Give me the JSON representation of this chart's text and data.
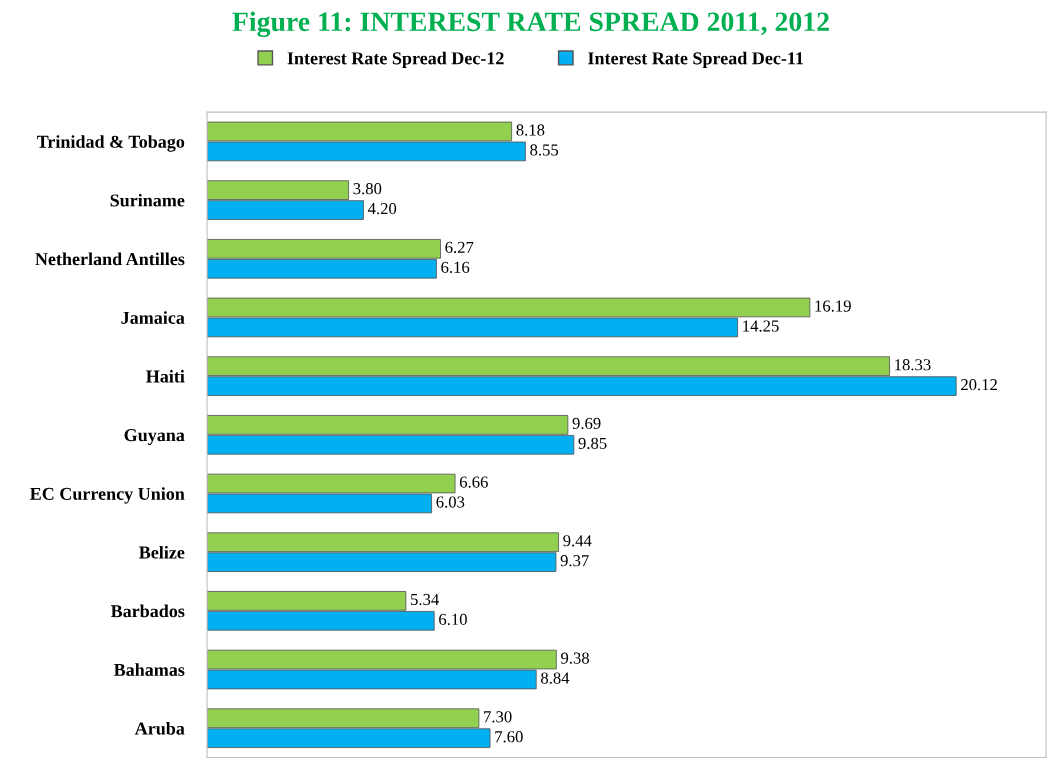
{
  "chart_data": {
    "type": "bar",
    "orientation": "horizontal",
    "title": "Figure 11: INTEREST RATE SPREAD 2011, 2012",
    "categories": [
      "Trinidad & Tobago",
      "Suriname",
      "Netherland Antilles",
      "Jamaica",
      "Haiti",
      "Guyana",
      "EC Currency Union",
      "Belize",
      "Barbados",
      "Bahamas",
      "Aruba"
    ],
    "series": [
      {
        "name": "Interest Rate Spread Dec-12",
        "color": "#92d050",
        "values": [
          8.18,
          3.8,
          6.27,
          16.19,
          18.33,
          9.69,
          6.66,
          9.44,
          5.34,
          9.38,
          7.3
        ],
        "value_labels": [
          "8.18",
          "3.80",
          "6.27",
          "16.19",
          "18.33",
          "9.69",
          "6.66",
          "9.44",
          "5.34",
          "9.38",
          "7.30"
        ]
      },
      {
        "name": "Interest Rate Spread Dec-11",
        "color": "#00b0f0",
        "values": [
          8.55,
          4.2,
          6.16,
          14.25,
          20.12,
          9.85,
          6.03,
          9.37,
          6.1,
          8.84,
          7.6
        ],
        "value_labels": [
          "8.55",
          "4.20",
          "6.16",
          "14.25",
          "20.12",
          "9.85",
          "6.03",
          "9.37",
          "6.10",
          "8.84",
          "7.60"
        ]
      }
    ],
    "legend": "top",
    "grid": false,
    "tick_labels": "y"
  }
}
